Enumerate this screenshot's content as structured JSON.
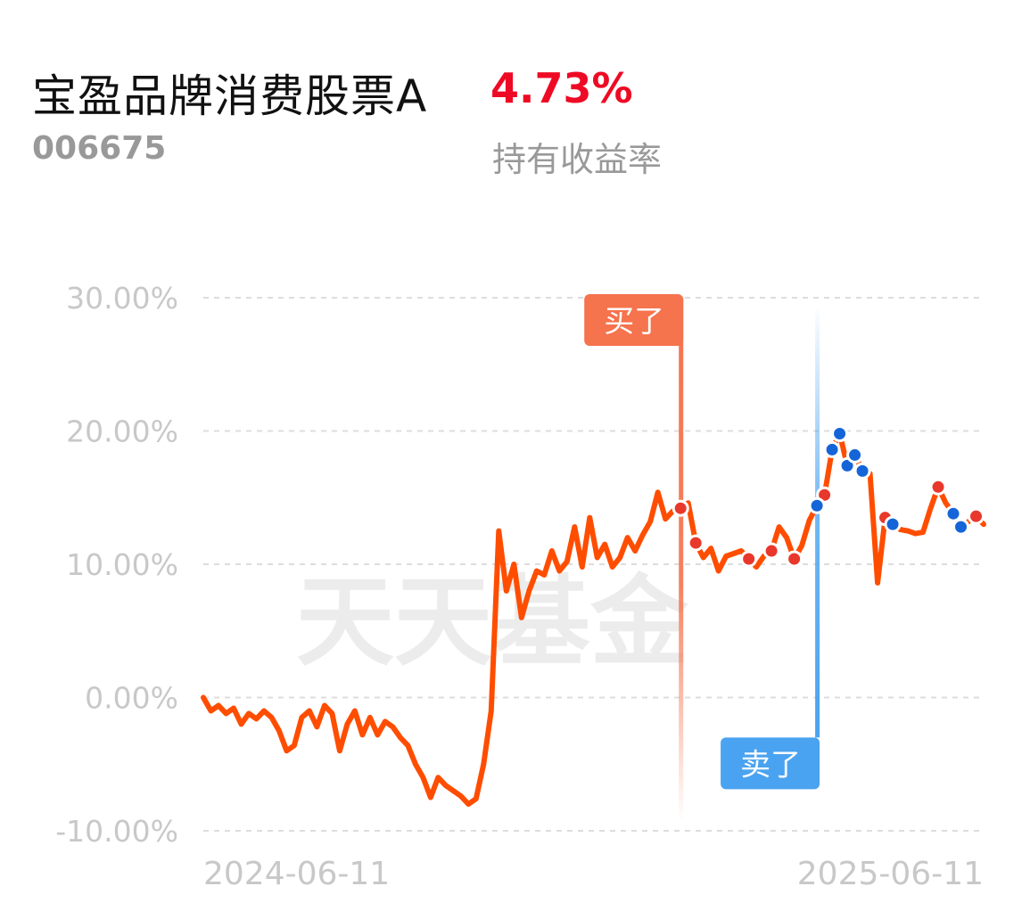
{
  "fund": {
    "name": "宝盈品牌消费股票A",
    "code": "006675",
    "return_value": "4.73%",
    "return_label": "持有收益率"
  },
  "watermark": "天天基金",
  "colors": {
    "line": "#ff4d00",
    "buy": "#f5734d",
    "sell": "#4aa3f0",
    "buy_dot": "#e8382b",
    "sell_dot": "#1565d8",
    "return_red": "#ee0a24"
  },
  "chart_data": {
    "type": "line",
    "ylim": [
      -10,
      30
    ],
    "y_ticks": [
      "30.00%",
      "20.00%",
      "10.00%",
      "0.00%",
      "-10.00%"
    ],
    "y_tick_values": [
      30,
      20,
      10,
      0,
      -10
    ],
    "x_ticks": [
      "2024-06-11",
      "2025-06-11"
    ],
    "x_range": [
      "2024-06-11",
      "2025-06-11"
    ],
    "series": [
      {
        "values": [
          0,
          -1,
          -0.6,
          -1.2,
          -0.8,
          -2,
          -1.2,
          -1.6,
          -1,
          -1.5,
          -2.5,
          -4,
          -3.6,
          -1.5,
          -1,
          -2.2,
          -0.6,
          -1.2,
          -4,
          -2,
          -1,
          -2.8,
          -1.5,
          -2.8,
          -1.8,
          -2.2,
          -3,
          -3.6,
          -5,
          -6,
          -7.5,
          -6,
          -6.6,
          -7,
          -7.4,
          -8,
          -7.6,
          -5,
          -1,
          12.5,
          8,
          10,
          6,
          8,
          9.5,
          9.2,
          11,
          9.5,
          10.2,
          12.8,
          9.8,
          13.5,
          10.5,
          11.5,
          9.8,
          10.5,
          12,
          11,
          12.2,
          13.2,
          15.4,
          13.4,
          14,
          14.2,
          14.6,
          11.6,
          10.5,
          11.2,
          9.5,
          10.6,
          10.8,
          11,
          10.4,
          9.8,
          10.6,
          11,
          12.8,
          12,
          10.4,
          11.4,
          13.3,
          14.4,
          15.2,
          18.6,
          19.8,
          17.4,
          18.2,
          17,
          16.8,
          8.6,
          13.5,
          13,
          12.6,
          12.5,
          12.3,
          12.4,
          14.2,
          15.8,
          14.6,
          13.8,
          12.8,
          13.2,
          13.6,
          13
        ]
      }
    ],
    "buy_marker": {
      "label": "买了",
      "index": 63
    },
    "sell_marker": {
      "label": "卖了",
      "index": 81
    },
    "buy_point_indices": [
      63,
      65,
      72,
      75,
      78,
      82,
      86,
      90,
      97,
      100,
      102
    ],
    "sell_point_indices": [
      81,
      83,
      84,
      85,
      86,
      87,
      91,
      99,
      100
    ]
  }
}
